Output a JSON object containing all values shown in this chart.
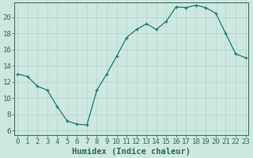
{
  "x": [
    0,
    1,
    2,
    3,
    4,
    5,
    6,
    7,
    8,
    9,
    10,
    11,
    12,
    13,
    14,
    15,
    16,
    17,
    18,
    19,
    20,
    21,
    22,
    23
  ],
  "y": [
    13.0,
    12.7,
    11.5,
    11.0,
    9.0,
    7.2,
    6.8,
    6.7,
    11.0,
    13.0,
    15.2,
    17.5,
    18.5,
    19.2,
    18.5,
    19.5,
    21.3,
    21.2,
    21.5,
    21.2,
    20.5,
    18.0,
    15.5,
    15.0
  ],
  "line_color": "#1a7a6a",
  "marker": "+",
  "bg_color": "#cce8e0",
  "grid_color": "#aacfc7",
  "axis_color": "#336655",
  "xlabel": "Humidex (Indice chaleur)",
  "xlabel_fontsize": 7.5,
  "tick_fontsize": 6.5,
  "ylim": [
    5.5,
    21.8
  ],
  "yticks": [
    6,
    8,
    10,
    12,
    14,
    16,
    18,
    20
  ],
  "xticks": [
    0,
    1,
    2,
    3,
    4,
    5,
    6,
    7,
    8,
    9,
    10,
    11,
    12,
    13,
    14,
    15,
    16,
    17,
    18,
    19,
    20,
    21,
    22,
    23
  ],
  "xlim": [
    -0.3,
    23.3
  ]
}
